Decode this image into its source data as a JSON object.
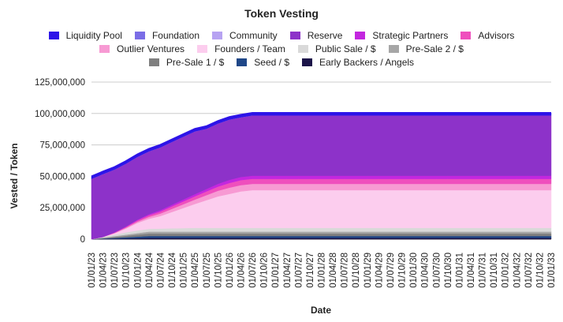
{
  "chart_data": {
    "type": "area",
    "stacked": true,
    "title": "Token Vesting",
    "xlabel": "Date",
    "ylabel": "Vested / Token",
    "ylim": [
      0,
      125000000
    ],
    "yticks": [
      0,
      25000000,
      50000000,
      75000000,
      100000000,
      125000000
    ],
    "ytick_labels": [
      "0",
      "25,000,000",
      "50,000,000",
      "75,000,000",
      "100,000,000",
      "125,000,000"
    ],
    "grid": true,
    "legend_position": "top",
    "categories": [
      "01/01/23",
      "01/04/23",
      "01/07/23",
      "01/10/23",
      "01/01/24",
      "01/04/24",
      "01/07/24",
      "01/10/24",
      "01/01/25",
      "01/04/25",
      "01/07/25",
      "01/10/25",
      "01/01/26",
      "01/04/26",
      "01/07/26",
      "01/10/26",
      "01/01/27",
      "01/04/27",
      "01/07/27",
      "01/10/27",
      "01/01/28",
      "01/04/28",
      "01/07/28",
      "01/10/28",
      "01/01/29",
      "01/04/29",
      "01/07/29",
      "01/10/29",
      "01/01/30",
      "01/04/30",
      "01/07/30",
      "01/10/30",
      "01/01/31",
      "01/04/31",
      "01/07/31",
      "01/10/31",
      "01/01/32",
      "01/04/32",
      "01/07/32",
      "01/10/32",
      "01/01/33"
    ],
    "series": [
      {
        "name": "Early Backers / Angels",
        "color": "#1c1549",
        "values": [
          0,
          200000,
          400000,
          600000,
          800000,
          1000000,
          1000000,
          1000000,
          1000000,
          1000000,
          1000000,
          1000000,
          1000000,
          1000000,
          1000000,
          1000000,
          1000000,
          1000000,
          1000000,
          1000000,
          1000000,
          1000000,
          1000000,
          1000000,
          1000000,
          1000000,
          1000000,
          1000000,
          1000000,
          1000000,
          1000000,
          1000000,
          1000000,
          1000000,
          1000000,
          1000000,
          1000000,
          1000000,
          1000000,
          1000000,
          1000000
        ]
      },
      {
        "name": "Seed / $",
        "color": "#1f4788",
        "values": [
          0,
          300000,
          600000,
          900000,
          1200000,
          1500000,
          1500000,
          1500000,
          1500000,
          1500000,
          1500000,
          1500000,
          1500000,
          1500000,
          1500000,
          1500000,
          1500000,
          1500000,
          1500000,
          1500000,
          1500000,
          1500000,
          1500000,
          1500000,
          1500000,
          1500000,
          1500000,
          1500000,
          1500000,
          1500000,
          1500000,
          1500000,
          1500000,
          1500000,
          1500000,
          1500000,
          1500000,
          1500000,
          1500000,
          1500000,
          1500000
        ]
      },
      {
        "name": "Pre-Sale 1 / $",
        "color": "#7f7f7f",
        "values": [
          0,
          400000,
          800000,
          1200000,
          1600000,
          2000000,
          2000000,
          2000000,
          2000000,
          2000000,
          2000000,
          2000000,
          2000000,
          2000000,
          2000000,
          2000000,
          2000000,
          2000000,
          2000000,
          2000000,
          2000000,
          2000000,
          2000000,
          2000000,
          2000000,
          2000000,
          2000000,
          2000000,
          2000000,
          2000000,
          2000000,
          2000000,
          2000000,
          2000000,
          2000000,
          2000000,
          2000000,
          2000000,
          2000000,
          2000000,
          2000000
        ]
      },
      {
        "name": "Pre-Sale 2 / $",
        "color": "#a6a6a6",
        "values": [
          0,
          300000,
          600000,
          900000,
          1200000,
          1500000,
          1500000,
          1500000,
          1500000,
          1500000,
          1500000,
          1500000,
          1500000,
          1500000,
          1500000,
          1500000,
          1500000,
          1500000,
          1500000,
          1500000,
          1500000,
          1500000,
          1500000,
          1500000,
          1500000,
          1500000,
          1500000,
          1500000,
          1500000,
          1500000,
          1500000,
          1500000,
          1500000,
          1500000,
          1500000,
          1500000,
          1500000,
          1500000,
          1500000,
          1500000,
          1500000
        ]
      },
      {
        "name": "Public Sale / $",
        "color": "#d9d9d9",
        "values": [
          0,
          600000,
          1200000,
          1800000,
          2100000,
          2200000,
          2400000,
          2600000,
          2800000,
          3000000,
          3000000,
          3000000,
          3000000,
          3000000,
          3000000,
          3000000,
          3000000,
          3000000,
          3000000,
          3000000,
          3000000,
          3000000,
          3000000,
          3000000,
          3000000,
          3000000,
          3000000,
          3000000,
          3000000,
          3000000,
          3000000,
          3000000,
          3000000,
          3000000,
          3000000,
          3000000,
          3000000,
          3000000,
          3000000,
          3000000,
          3000000
        ]
      },
      {
        "name": "Founders / Team",
        "color": "#fccdee",
        "values": [
          0,
          0,
          1000000,
          3000000,
          6000000,
          8000000,
          10000000,
          13000000,
          16000000,
          19000000,
          22000000,
          25000000,
          27000000,
          29000000,
          30000000,
          30000000,
          30000000,
          30000000,
          30000000,
          30000000,
          30000000,
          30000000,
          30000000,
          30000000,
          30000000,
          30000000,
          30000000,
          30000000,
          30000000,
          30000000,
          30000000,
          30000000,
          30000000,
          30000000,
          30000000,
          30000000,
          30000000,
          30000000,
          30000000,
          30000000,
          30000000
        ]
      },
      {
        "name": "Outlier Ventures",
        "color": "#f79ad3",
        "values": [
          0,
          0,
          300000,
          700000,
          1000000,
          1500000,
          2000000,
          2500000,
          3000000,
          3500000,
          4000000,
          4500000,
          5000000,
          5000000,
          5000000,
          5000000,
          5000000,
          5000000,
          5000000,
          5000000,
          5000000,
          5000000,
          5000000,
          5000000,
          5000000,
          5000000,
          5000000,
          5000000,
          5000000,
          5000000,
          5000000,
          5000000,
          5000000,
          5000000,
          5000000,
          5000000,
          5000000,
          5000000,
          5000000,
          5000000,
          5000000
        ]
      },
      {
        "name": "Advisors",
        "color": "#ef4fbd",
        "values": [
          0,
          0,
          300000,
          600000,
          1000000,
          1300000,
          1600000,
          2000000,
          2300000,
          2600000,
          3000000,
          3300000,
          3700000,
          4000000,
          4000000,
          4000000,
          4000000,
          4000000,
          4000000,
          4000000,
          4000000,
          4000000,
          4000000,
          4000000,
          4000000,
          4000000,
          4000000,
          4000000,
          4000000,
          4000000,
          4000000,
          4000000,
          4000000,
          4000000,
          4000000,
          4000000,
          4000000,
          4000000,
          4000000,
          4000000,
          4000000
        ]
      },
      {
        "name": "Strategic Partners",
        "color": "#c327df",
        "values": [
          0,
          0,
          200000,
          400000,
          600000,
          900000,
          1100000,
          1300000,
          1500000,
          1700000,
          1900000,
          2200000,
          2500000,
          2500000,
          2500000,
          2500000,
          2500000,
          2500000,
          2500000,
          2500000,
          2500000,
          2500000,
          2500000,
          2500000,
          2500000,
          2500000,
          2500000,
          2500000,
          2500000,
          2500000,
          2500000,
          2500000,
          2500000,
          2500000,
          2500000,
          2500000,
          2500000,
          2500000,
          2500000,
          2500000,
          2500000
        ]
      },
      {
        "name": "Reserve",
        "color": "#8d32c9",
        "values": [
          48000000,
          50000000,
          50000000,
          50000000,
          50000000,
          50000000,
          50000000,
          50000000,
          50000000,
          50000000,
          48000000,
          48000000,
          48000000,
          47500000,
          48000000,
          48000000,
          48000000,
          48000000,
          48000000,
          48000000,
          48000000,
          48000000,
          48000000,
          48000000,
          48000000,
          48000000,
          48000000,
          48000000,
          48000000,
          48000000,
          48000000,
          48000000,
          48000000,
          48000000,
          48000000,
          48000000,
          48000000,
          48000000,
          48000000,
          48000000,
          48000000
        ]
      },
      {
        "name": "Community",
        "color": "#b7a3f2",
        "values": [
          0,
          0,
          0,
          0,
          0,
          0,
          0,
          0,
          0,
          0,
          0,
          0,
          0,
          0,
          0,
          0,
          0,
          0,
          0,
          0,
          0,
          0,
          0,
          0,
          0,
          0,
          0,
          0,
          0,
          0,
          0,
          0,
          0,
          0,
          0,
          0,
          0,
          0,
          0,
          0,
          0
        ]
      },
      {
        "name": "Foundation",
        "color": "#7b6de6",
        "values": [
          0,
          0,
          0,
          0,
          0,
          0,
          0,
          0,
          0,
          0,
          0,
          0,
          0,
          0,
          0,
          0,
          0,
          0,
          0,
          0,
          0,
          0,
          0,
          0,
          0,
          0,
          0,
          0,
          0,
          0,
          0,
          0,
          0,
          0,
          0,
          0,
          0,
          0,
          0,
          0,
          0
        ]
      },
      {
        "name": "Liquidity Pool",
        "color": "#2d14e8",
        "values": [
          2000000,
          2000000,
          2000000,
          2000000,
          2000000,
          2000000,
          2000000,
          2000000,
          2000000,
          2000000,
          2000000,
          2000000,
          2000000,
          2000000,
          2000000,
          2000000,
          2000000,
          2000000,
          2000000,
          2000000,
          2000000,
          2000000,
          2000000,
          2000000,
          2000000,
          2000000,
          2000000,
          2000000,
          2000000,
          2000000,
          2000000,
          2000000,
          2000000,
          2000000,
          2000000,
          2000000,
          2000000,
          2000000,
          2000000,
          2000000,
          2000000
        ]
      }
    ],
    "legend_rows": [
      [
        "Liquidity Pool",
        "Foundation",
        "Community",
        "Reserve",
        "Strategic Partners",
        "Advisors"
      ],
      [
        "Outlier Ventures",
        "Founders / Team",
        "Public Sale / $",
        "Pre-Sale 2 / $"
      ],
      [
        "Pre-Sale 1 / $",
        "Seed / $",
        "Early Backers / Angels"
      ]
    ]
  }
}
